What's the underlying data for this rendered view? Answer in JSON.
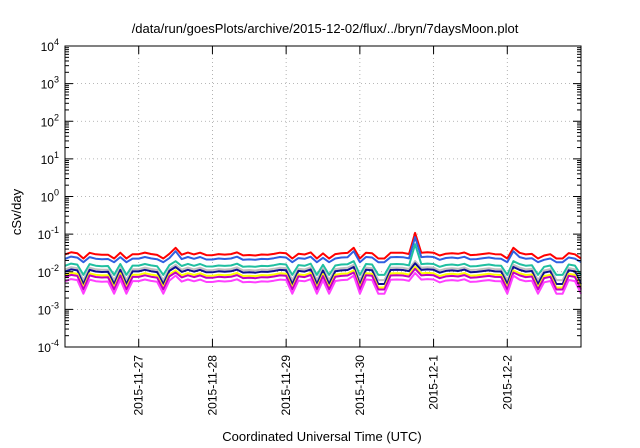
{
  "chart_data": {
    "type": "line",
    "title": "/data/run/goesPlots/archive/2015-12-02/flux/../bryn/7daysMoon.plot",
    "xlabel": "Coordinated Universal Time (UTC)",
    "ylabel": "cSv/day",
    "yscale": "log",
    "ylim": [
      0.0001,
      10000
    ],
    "y_ticks": [
      {
        "base": "10",
        "exp": "-4"
      },
      {
        "base": "10",
        "exp": "-3"
      },
      {
        "base": "10",
        "exp": "-2"
      },
      {
        "base": "10",
        "exp": "-1"
      },
      {
        "base": "10",
        "exp": "0"
      },
      {
        "base": "10",
        "exp": "1"
      },
      {
        "base": "10",
        "exp": "2"
      },
      {
        "base": "10",
        "exp": "3"
      },
      {
        "base": "10",
        "exp": "4"
      }
    ],
    "xlim": [
      "2015-11-26 00:00",
      "2015-12-03 00:00"
    ],
    "x_ticks": [
      "2015-11-27",
      "2015-11-28",
      "2015-11-29",
      "2015-11-30",
      "2015-12-1",
      "2015-12-2"
    ],
    "grid": true,
    "legend": "none",
    "sample_interval_hours": 2,
    "series": [
      {
        "color": "#ff0000",
        "base": 0.03,
        "dip": 0.75,
        "spike": 1.7
      },
      {
        "color": "#3060e0",
        "base": 0.023,
        "dip": 0.78,
        "spike": 1.8
      },
      {
        "color": "#20c0a0",
        "base": 0.015,
        "dip": 0.55,
        "spike": 1.5
      },
      {
        "color": "#c0c0c0",
        "base": 0.012,
        "dip": 0.5,
        "spike": 1.5
      },
      {
        "color": "#101090",
        "base": 0.0105,
        "dip": 0.45,
        "spike": 1.5
      },
      {
        "color": "#ffff00",
        "base": 0.0085,
        "dip": 0.45,
        "spike": 1.5
      },
      {
        "color": "#c000c0",
        "base": 0.0075,
        "dip": 0.45,
        "spike": 1.5
      },
      {
        "color": "#ff40ff",
        "base": 0.0058,
        "dip": 0.45,
        "spike": 1.6
      }
    ]
  }
}
